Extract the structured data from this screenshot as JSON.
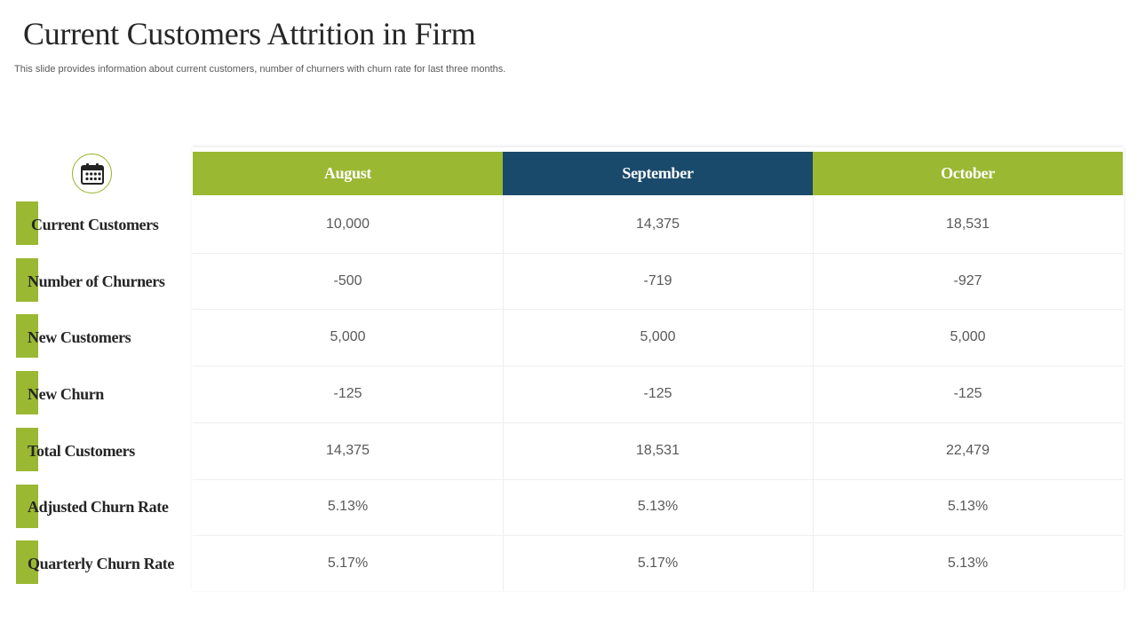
{
  "slide": {
    "title": "Current Customers Attrition in Firm",
    "subtitle": "This slide provides information about current customers, number of churners with churn rate for last three months."
  },
  "colors": {
    "green": "#9ab832",
    "navy": "#1a4a6b"
  },
  "icon": "calendar-icon",
  "table": {
    "months": [
      "August",
      "September",
      "October"
    ],
    "rows": [
      {
        "label": "Current Customers",
        "values": [
          "10,000",
          "14,375",
          "18,531"
        ]
      },
      {
        "label": "Number of Churners",
        "values": [
          "-500",
          "-719",
          "-927"
        ]
      },
      {
        "label": "New Customers",
        "values": [
          "5,000",
          "5,000",
          "5,000"
        ]
      },
      {
        "label": "New Churn",
        "values": [
          "-125",
          "-125",
          "-125"
        ]
      },
      {
        "label": "Total Customers",
        "values": [
          "14,375",
          "18,531",
          "22,479"
        ]
      },
      {
        "label": "Adjusted Churn Rate",
        "values": [
          "5.13%",
          "5.13%",
          "5.13%"
        ]
      },
      {
        "label": "Quarterly Churn Rate",
        "values": [
          "5.17%",
          "5.17%",
          "5.13%"
        ]
      }
    ]
  }
}
